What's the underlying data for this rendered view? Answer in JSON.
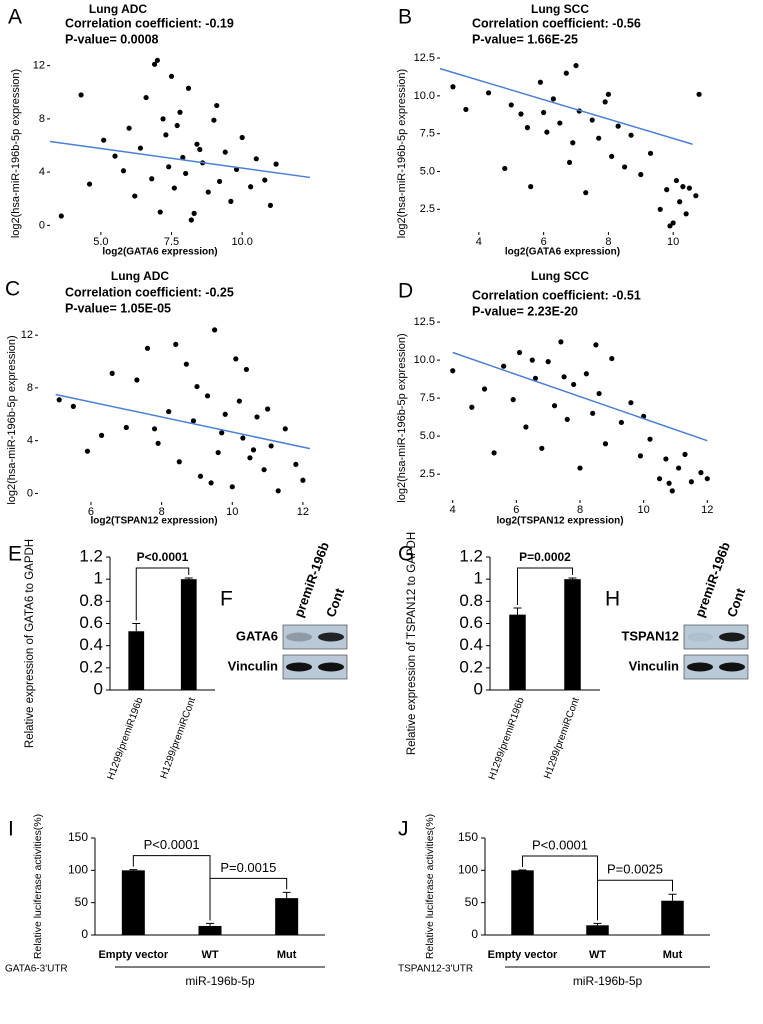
{
  "chart_data": [
    {
      "type": "scatter",
      "panel": "A",
      "title": "Lung ADC",
      "annotations": [
        "Correlation coefficient: -0.19",
        "P-value= 0.0008"
      ],
      "xlabel": "log2(GATA6 expression)",
      "ylabel": "log2(hsa-miR-196b-5p expression)",
      "color": "#000000",
      "x": [
        3.6,
        4.3,
        4.6,
        5.1,
        5.5,
        5.8,
        6.0,
        6.2,
        6.4,
        6.6,
        6.8,
        7.0,
        7.1,
        7.3,
        7.4,
        7.5,
        7.6,
        7.8,
        7.9,
        8.0,
        8.1,
        8.3,
        8.4,
        8.6,
        8.8,
        9.0,
        9.2,
        9.4,
        9.6,
        9.8,
        10.0,
        10.3,
        10.5,
        10.8,
        11.0,
        11.2,
        6.9,
        7.7,
        8.2,
        9.1,
        7.2,
        8.5
      ],
      "y": [
        0.7,
        9.8,
        3.1,
        6.4,
        5.2,
        4.1,
        7.3,
        2.2,
        5.8,
        9.6,
        3.5,
        12.4,
        1.0,
        6.8,
        4.4,
        11.2,
        2.8,
        8.5,
        5.1,
        3.9,
        10.3,
        0.9,
        6.1,
        4.7,
        2.5,
        7.9,
        3.3,
        5.5,
        1.8,
        4.2,
        6.6,
        2.9,
        5.0,
        3.4,
        1.5,
        4.6,
        12.1,
        7.5,
        0.4,
        9.0,
        8.0,
        5.7
      ],
      "trendline": {
        "x": [
          3.2,
          12.4
        ],
        "y": [
          6.3,
          3.6
        ],
        "color": "#4a7fd4"
      },
      "xlim": [
        3.2,
        12.4
      ],
      "ylim": [
        -0.5,
        12.8
      ],
      "xticks": [
        {
          "value": 5,
          "label": "5.0"
        },
        7.5,
        {
          "value": 10,
          "label": "10.0"
        }
      ],
      "yticks": [
        0,
        4,
        8,
        12
      ]
    },
    {
      "type": "scatter",
      "panel": "B",
      "title": "Lung SCC",
      "annotations": [
        "Correlation coefficient: -0.56",
        "P-value= 1.66E-25"
      ],
      "xlabel": "log2(GATA6 expression)",
      "ylabel": "log2(hsa-miR-196b-5p expression)",
      "color": "#000000",
      "x": [
        3.2,
        3.6,
        4.3,
        4.8,
        5.0,
        5.3,
        5.6,
        5.9,
        6.1,
        6.3,
        6.5,
        6.7,
        6.9,
        7.1,
        7.3,
        7.5,
        7.7,
        7.9,
        8.1,
        8.3,
        8.5,
        8.7,
        9.0,
        9.3,
        9.6,
        9.8,
        10.0,
        10.1,
        10.2,
        10.4,
        10.5,
        10.7,
        6.0,
        7.0,
        8.0,
        9.9,
        10.3,
        5.5,
        10.8,
        6.8
      ],
      "y": [
        10.6,
        9.1,
        10.2,
        5.2,
        9.4,
        8.8,
        4.0,
        10.9,
        7.6,
        9.8,
        8.2,
        11.5,
        6.9,
        9.0,
        3.6,
        8.4,
        7.2,
        9.6,
        6.0,
        8.0,
        5.3,
        7.4,
        4.8,
        6.2,
        2.5,
        3.8,
        1.6,
        4.4,
        3.0,
        2.2,
        3.9,
        3.4,
        8.9,
        12.0,
        10.1,
        1.4,
        4.0,
        7.9,
        10.1,
        5.6
      ],
      "trendline": {
        "x": [
          2.8,
          10.6
        ],
        "y": [
          11.8,
          6.8
        ],
        "color": "#4a7fd4"
      },
      "xlim": [
        2.8,
        11.6
      ],
      "ylim": [
        1.0,
        12.7
      ],
      "xticks": [
        4,
        6,
        8,
        10
      ],
      "yticks": [
        2.5,
        {
          "value": 5,
          "label": "5.0"
        },
        7.5,
        {
          "value": 10,
          "label": "10.0"
        },
        12.5
      ]
    },
    {
      "type": "scatter",
      "panel": "C",
      "title": "Lung ADC",
      "annotations": [
        "Correlation coefficient: -0.25",
        "P-value= 1.05E-05"
      ],
      "xlabel": "log2(TSPAN12 expression)",
      "ylabel": "log2(hsa-miR-196b-5p expression)",
      "color": "#000000",
      "x": [
        5.1,
        5.5,
        5.9,
        6.3,
        6.6,
        7.0,
        7.3,
        7.6,
        7.9,
        8.2,
        8.5,
        8.7,
        8.9,
        9.1,
        9.3,
        9.5,
        9.6,
        9.8,
        10.0,
        10.1,
        10.3,
        10.5,
        10.7,
        10.9,
        11.1,
        11.3,
        11.5,
        11.8,
        12.0,
        9.0,
        9.7,
        10.2,
        8.4,
        10.6,
        9.4,
        11.0,
        7.8,
        10.4
      ],
      "y": [
        7.1,
        6.6,
        3.2,
        4.4,
        9.1,
        5.0,
        8.6,
        11.0,
        3.8,
        6.2,
        2.4,
        9.8,
        5.5,
        1.3,
        7.4,
        12.4,
        3.1,
        6.0,
        0.5,
        10.2,
        4.2,
        2.7,
        5.8,
        1.8,
        3.6,
        0.2,
        4.9,
        2.2,
        1.0,
        8.1,
        4.6,
        7.0,
        11.3,
        3.3,
        0.8,
        6.4,
        4.9,
        9.4
      ],
      "trendline": {
        "x": [
          5.0,
          12.2
        ],
        "y": [
          7.5,
          3.4
        ],
        "color": "#4a7fd4"
      },
      "xlim": [
        4.5,
        12.2
      ],
      "ylim": [
        -0.65,
        13.3
      ],
      "xticks": [
        6,
        8,
        10,
        12
      ],
      "yticks": [
        0,
        4,
        8,
        12
      ]
    },
    {
      "type": "scatter",
      "panel": "D",
      "title": "Lung SCC",
      "annotations": [
        "Correlation coefficient: -0.51",
        "P-value= 2.23E-20"
      ],
      "xlabel": "log2(TSPAN12 expression)",
      "ylabel": "log2(hsa-miR-196b-5p expression)",
      "color": "#000000",
      "x": [
        4.0,
        4.6,
        5.0,
        5.3,
        5.6,
        5.9,
        6.1,
        6.3,
        6.6,
        6.8,
        7.0,
        7.2,
        7.4,
        7.6,
        7.8,
        8.0,
        8.2,
        8.4,
        8.6,
        8.8,
        9.0,
        9.3,
        9.6,
        9.9,
        10.2,
        10.5,
        10.7,
        10.9,
        11.1,
        11.3,
        11.5,
        11.8,
        12.0,
        6.5,
        7.5,
        8.5,
        10.0,
        10.8
      ],
      "y": [
        9.3,
        6.9,
        8.1,
        3.9,
        9.6,
        7.4,
        10.5,
        5.6,
        8.8,
        4.2,
        9.9,
        7.0,
        11.2,
        6.1,
        8.4,
        2.9,
        9.1,
        6.5,
        7.8,
        4.5,
        10.1,
        5.9,
        7.2,
        3.7,
        4.8,
        2.2,
        3.5,
        1.4,
        2.9,
        3.8,
        2.0,
        2.6,
        2.2,
        10.0,
        8.9,
        11.0,
        6.3,
        1.9
      ],
      "trendline": {
        "x": [
          4.0,
          12.0
        ],
        "y": [
          10.5,
          4.7
        ],
        "color": "#4a7fd4"
      },
      "xlim": [
        3.6,
        12.4
      ],
      "ylim": [
        0.8,
        12.9
      ],
      "xticks": [
        4,
        6,
        8,
        10,
        12
      ],
      "yticks": [
        2.5,
        {
          "value": 5,
          "label": "5.0"
        },
        7.5,
        {
          "value": 10,
          "label": "10.0"
        },
        12.5
      ]
    },
    {
      "type": "bar",
      "panel": "E",
      "ylabel": "Relative expression of GATA6 to GAPDH",
      "color": "#000000",
      "categories": [
        "H1299/premiR196b",
        "H1299/premiRCont"
      ],
      "values": [
        0.53,
        1.0
      ],
      "errors": [
        0.07,
        0.01
      ],
      "significance": [
        {
          "label": "P<0.0001",
          "from": 0,
          "to": 1
        }
      ],
      "ylim": [
        0,
        1.2
      ],
      "yticks": [
        0,
        0.2,
        0.4,
        0.6,
        0.8,
        1,
        1.2
      ]
    },
    {
      "type": "bar",
      "panel": "G",
      "ylabel": "Relative expression of TSPAN12 to GAPDH",
      "color": "#000000",
      "categories": [
        "H1299/premiR196b",
        "H1299/premiRCont"
      ],
      "values": [
        0.68,
        1.0
      ],
      "errors": [
        0.06,
        0.01
      ],
      "significance": [
        {
          "label": "P=0.0002",
          "from": 0,
          "to": 1
        }
      ],
      "ylim": [
        0,
        1.2
      ],
      "yticks": [
        0,
        0.2,
        0.4,
        0.6,
        0.8,
        1,
        1.2
      ]
    },
    {
      "type": "bar",
      "panel": "I",
      "ylabel": "Relative luciferase activities(%)",
      "color": "#000000",
      "categories": [
        "Empty vector",
        "WT",
        "Mut"
      ],
      "values": [
        100,
        14,
        57
      ],
      "errors": [
        1,
        4,
        9
      ],
      "construct_label": "GATA6-3'UTR",
      "group_label": "miR-196b-5p",
      "significance": [
        {
          "label": "P<0.0001",
          "from": 0,
          "to": 1
        },
        {
          "label": "P=0.0015",
          "from": 1,
          "to": 2
        }
      ],
      "ylim": [
        0,
        150
      ],
      "yticks": [
        0,
        50,
        100,
        150
      ]
    },
    {
      "type": "bar",
      "panel": "J",
      "ylabel": "Relative luciferase activities(%)",
      "color": "#000000",
      "categories": [
        "Empty vector",
        "WT",
        "Mut"
      ],
      "values": [
        100,
        15,
        53
      ],
      "errors": [
        0.5,
        3,
        10
      ],
      "construct_label": "TSPAN12-3'UTR",
      "group_label": "miR-196b-5p",
      "significance": [
        {
          "label": "P<0.0001",
          "from": 0,
          "to": 1
        },
        {
          "label": "P=0.0025",
          "from": 1,
          "to": 2
        }
      ],
      "ylim": [
        0,
        150
      ],
      "yticks": [
        0,
        50,
        100,
        150
      ]
    }
  ],
  "blots": [
    {
      "panel": "F",
      "lanes": [
        "premiR-196b",
        "Cont"
      ],
      "rows": [
        "GATA6",
        "Vinculin"
      ]
    },
    {
      "panel": "H",
      "lanes": [
        "premiR-196b",
        "Cont"
      ],
      "rows": [
        "TSPAN12",
        "Vinculin"
      ]
    }
  ]
}
